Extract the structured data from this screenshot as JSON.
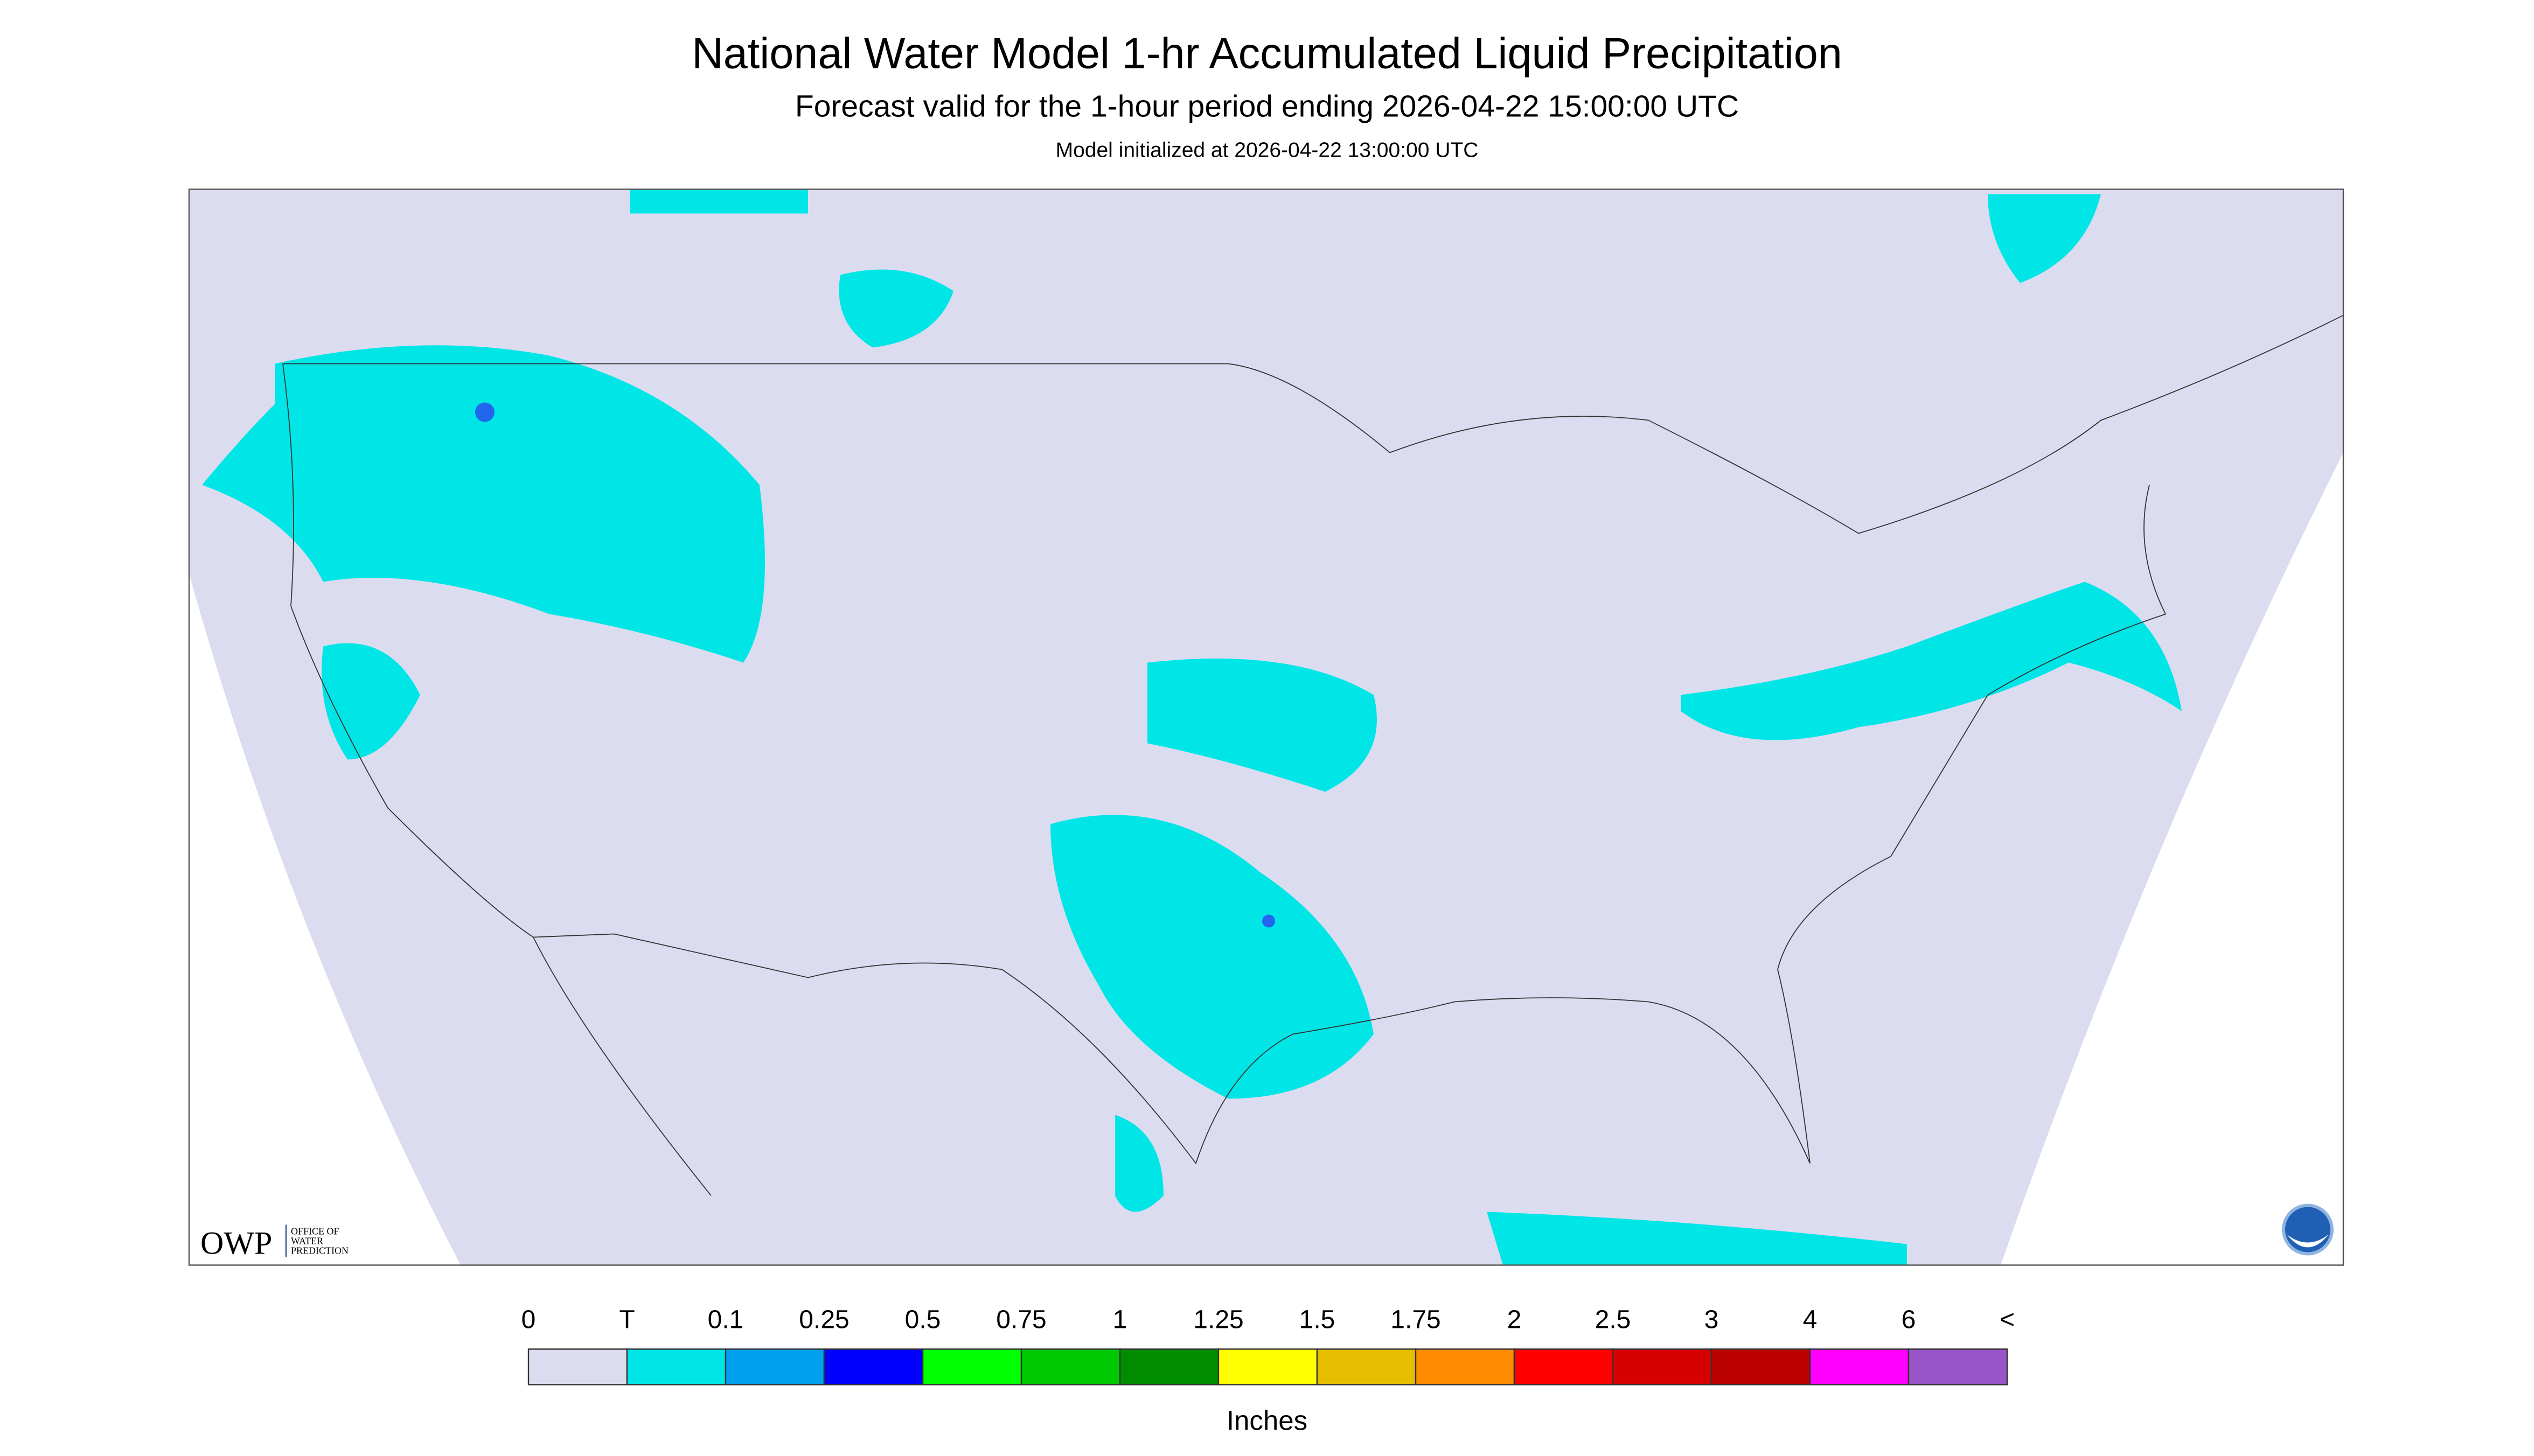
{
  "header": {
    "title": "National Water Model 1-hr Accumulated Liquid Precipitation",
    "subtitle": "Forecast valid for the 1-hour period ending 2026-04-22 15:00:00 UTC",
    "note": "Model initialized at 2026-04-22 13:00:00 UTC"
  },
  "logo": {
    "name": "OWP",
    "lines": [
      "OFFICE OF",
      "WATER",
      "PREDICTION"
    ]
  },
  "legend": {
    "labels": [
      "0",
      "T",
      "0.1",
      "0.25",
      "0.5",
      "0.75",
      "1",
      "1.25",
      "1.5",
      "1.75",
      "2",
      "2.5",
      "3",
      "4",
      "6",
      "<"
    ],
    "colors": [
      "#dcdcf0",
      "#00e6e6",
      "#00a0ee",
      "#0000ff",
      "#00ff00",
      "#00c800",
      "#008c00",
      "#ffff00",
      "#e6be00",
      "#ff8c00",
      "#ff0000",
      "#d70000",
      "#bb0000",
      "#ff00ff",
      "#9955c8"
    ],
    "unit": "Inches"
  }
}
